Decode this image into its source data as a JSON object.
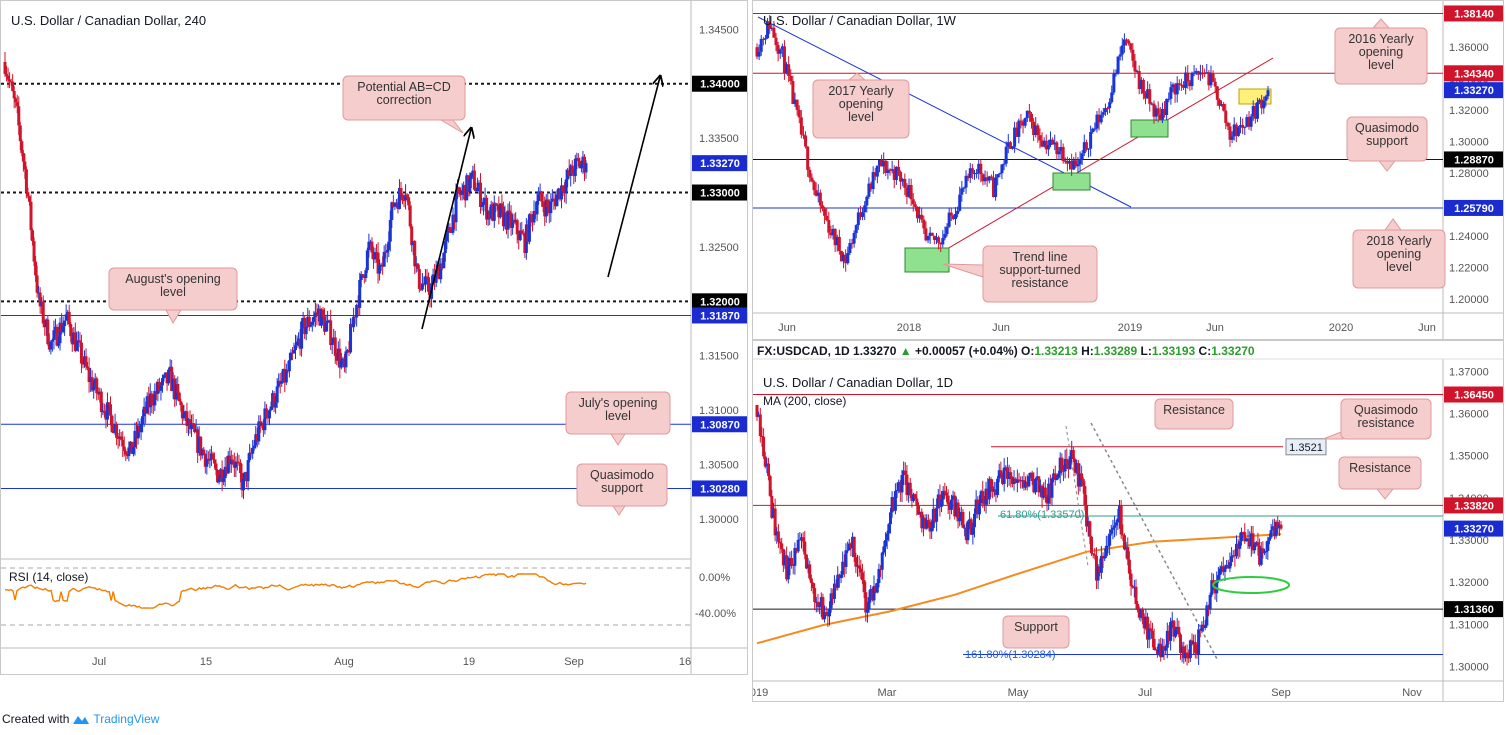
{
  "colors": {
    "bull": "#1a35d6",
    "bear": "#d0142c",
    "hline_red": "#d0142c",
    "hline_blue": "#1a35d6",
    "label_red": "#d0142c",
    "label_dark": "#131722",
    "callout_bg": "#f6cdcd",
    "callout_border": "#e09999",
    "rsi": "#f57c00",
    "ma": "#f58a1f",
    "fib": "#2a9d8f",
    "green_box": "#8fe08f",
    "yellow_box": "#fff07a"
  },
  "footer": {
    "created_with": "Created with",
    "brand": "TradingView"
  },
  "chart_data": [
    {
      "id": "h4",
      "type": "candlestick",
      "title": "U.S. Dollar / Canadian Dollar, 240",
      "ylim": [
        1.2965,
        1.3465
      ],
      "yticks": [
        "1.34500",
        "1.34000",
        "1.33500",
        "1.33000",
        "1.32500",
        "1.32000",
        "1.31500",
        "1.31000",
        "1.30500",
        "1.30000"
      ],
      "xticks": [
        "Jul",
        "15",
        "Aug",
        "19",
        "Sep",
        "16"
      ],
      "levels": [
        {
          "value": 1.34,
          "label": "1.34000",
          "style": "dotted",
          "color": "dark"
        },
        {
          "value": 1.3327,
          "label": "1.33270",
          "style": "none",
          "color": "blue"
        },
        {
          "value": 1.33,
          "label": "1.33000",
          "style": "dotted",
          "color": "dark"
        },
        {
          "value": 1.32,
          "label": "1.32000",
          "style": "dotted",
          "color": "dark"
        },
        {
          "value": 1.3187,
          "label": "1.31870",
          "style": "solid",
          "color": "blue"
        },
        {
          "value": 1.3087,
          "label": "1.30870",
          "style": "solid",
          "color": "blue"
        },
        {
          "value": 1.3028,
          "label": "1.30280",
          "style": "solid",
          "color": "blue"
        }
      ],
      "annotations": [
        "Potential AB=CD correction",
        "August's opening level",
        "July's opening level",
        "Quasimodo support"
      ],
      "rsi": {
        "label": "RSI (14, close)",
        "ticks": [
          "0.00%",
          "-40.00%"
        ]
      },
      "anchors": [
        [
          0,
          1.342
        ],
        [
          8,
          1.337
        ],
        [
          14,
          1.331
        ],
        [
          22,
          1.32
        ],
        [
          30,
          1.316
        ],
        [
          40,
          1.3185
        ],
        [
          55,
          1.313
        ],
        [
          70,
          1.309
        ],
        [
          82,
          1.306
        ],
        [
          95,
          1.311
        ],
        [
          108,
          1.313
        ],
        [
          118,
          1.309
        ],
        [
          130,
          1.306
        ],
        [
          140,
          1.304
        ],
        [
          148,
          1.306
        ],
        [
          156,
          1.303
        ],
        [
          163,
          1.307
        ],
        [
          172,
          1.31
        ],
        [
          185,
          1.3135
        ],
        [
          195,
          1.3175
        ],
        [
          205,
          1.319
        ],
        [
          213,
          1.317
        ],
        [
          222,
          1.3135
        ],
        [
          228,
          1.3185
        ],
        [
          238,
          1.325
        ],
        [
          246,
          1.3225
        ],
        [
          254,
          1.329
        ],
        [
          262,
          1.3305
        ],
        [
          270,
          1.322
        ],
        [
          278,
          1.321
        ],
        [
          286,
          1.3238
        ],
        [
          296,
          1.3295
        ],
        [
          306,
          1.3312
        ],
        [
          316,
          1.3282
        ],
        [
          324,
          1.328
        ],
        [
          332,
          1.327
        ],
        [
          340,
          1.3255
        ],
        [
          348,
          1.3295
        ],
        [
          356,
          1.3285
        ],
        [
          364,
          1.3305
        ],
        [
          374,
          1.3325
        ],
        [
          380,
          1.3327
        ]
      ]
    },
    {
      "id": "w1",
      "type": "candlestick",
      "title": "U.S. Dollar / Canadian Dollar, 1W",
      "ylim": [
        1.195,
        1.3855
      ],
      "yticks": [
        "1.36000",
        "1.34000",
        "1.32000",
        "1.30000",
        "1.28000",
        "1.26000",
        "1.24000",
        "1.22000",
        "1.20000"
      ],
      "xticks": [
        "Jun",
        "2018",
        "Jun",
        "2019",
        "Jun",
        "2020",
        "Jun"
      ],
      "levels": [
        {
          "value": 1.3814,
          "label": "1.38140",
          "style": "solid",
          "color": "red"
        },
        {
          "value": 1.3434,
          "label": "1.34340",
          "style": "solid",
          "color": "red"
        },
        {
          "value": 1.3327,
          "label": "1.33270",
          "style": "none",
          "color": "blue"
        },
        {
          "value": 1.2887,
          "label": "1.28870",
          "style": "solid",
          "color": "dark"
        },
        {
          "value": 1.2579,
          "label": "1.25790",
          "style": "solid",
          "color": "blue"
        }
      ],
      "annotations": [
        "2016 Yearly opening level",
        "2017 Yearly opening level",
        "Quasimodo support",
        "2018 Yearly opening level",
        "Trend line support-turned resistance"
      ],
      "anchors": [
        [
          0,
          1.36
        ],
        [
          6,
          1.375
        ],
        [
          12,
          1.355
        ],
        [
          20,
          1.31
        ],
        [
          28,
          1.265
        ],
        [
          36,
          1.24
        ],
        [
          42,
          1.225
        ],
        [
          50,
          1.26
        ],
        [
          58,
          1.285
        ],
        [
          66,
          1.28
        ],
        [
          74,
          1.265
        ],
        [
          80,
          1.235
        ],
        [
          88,
          1.24
        ],
        [
          96,
          1.265
        ],
        [
          104,
          1.285
        ],
        [
          112,
          1.27
        ],
        [
          120,
          1.3
        ],
        [
          128,
          1.315
        ],
        [
          136,
          1.3
        ],
        [
          144,
          1.295
        ],
        [
          152,
          1.283
        ],
        [
          158,
          1.305
        ],
        [
          166,
          1.325
        ],
        [
          174,
          1.365
        ],
        [
          182,
          1.335
        ],
        [
          190,
          1.315
        ],
        [
          198,
          1.335
        ],
        [
          206,
          1.34
        ],
        [
          212,
          1.345
        ],
        [
          218,
          1.33
        ],
        [
          224,
          1.305
        ],
        [
          230,
          1.31
        ],
        [
          236,
          1.32
        ],
        [
          242,
          1.3327
        ]
      ]
    },
    {
      "id": "d1",
      "type": "candlestick",
      "title": "U.S. Dollar / Canadian Dollar, 1D",
      "ohlc_header": {
        "symbol": "FX:USDCAD, 1D",
        "last": "1.33270",
        "change": "+0.00057 (+0.04%)",
        "o": "1.33213",
        "h": "1.33289",
        "l": "1.33193",
        "c": "1.33270"
      },
      "indicator": "MA (200, close)",
      "ylim": [
        1.2975,
        1.3715
      ],
      "yticks": [
        "1.37000",
        "1.36000",
        "1.35000",
        "1.34000",
        "1.33000",
        "1.32000",
        "1.31000",
        "1.30000"
      ],
      "xticks": [
        "019",
        "Mar",
        "May",
        "Jul",
        "Sep",
        "Nov"
      ],
      "levels": [
        {
          "value": 1.3645,
          "label": "1.36450",
          "style": "solid",
          "color": "red"
        },
        {
          "value": 1.3521,
          "label": "1.3521",
          "style": "solid",
          "color": "red"
        },
        {
          "value": 1.3382,
          "label": "1.33820",
          "style": "solid",
          "color": "red"
        },
        {
          "value": 1.3357,
          "label": "1.33570",
          "style": "solid",
          "color": "fib"
        },
        {
          "value": 1.3327,
          "label": "1.33270",
          "style": "none",
          "color": "blue"
        },
        {
          "value": 1.3136,
          "label": "1.31360",
          "style": "solid",
          "color": "dark"
        },
        {
          "value": 1.30284,
          "label": "1.30284",
          "style": "solid",
          "color": "blue"
        }
      ],
      "fib_labels": [
        "61.80%(1.33570)",
        "161.80%(1.30284)"
      ],
      "annotations": [
        "Resistance",
        "Quasimodo resistance",
        "Resistance",
        "Support"
      ],
      "anchors": [
        [
          0,
          1.362
        ],
        [
          4,
          1.352
        ],
        [
          10,
          1.335
        ],
        [
          18,
          1.322
        ],
        [
          26,
          1.33
        ],
        [
          34,
          1.318
        ],
        [
          42,
          1.312
        ],
        [
          50,
          1.32
        ],
        [
          58,
          1.33
        ],
        [
          66,
          1.315
        ],
        [
          72,
          1.318
        ],
        [
          80,
          1.335
        ],
        [
          88,
          1.345
        ],
        [
          96,
          1.338
        ],
        [
          104,
          1.333
        ],
        [
          112,
          1.34
        ],
        [
          120,
          1.338
        ],
        [
          128,
          1.332
        ],
        [
          136,
          1.34
        ],
        [
          144,
          1.343
        ],
        [
          152,
          1.345
        ],
        [
          160,
          1.342
        ],
        [
          168,
          1.344
        ],
        [
          176,
          1.34
        ],
        [
          184,
          1.347
        ],
        [
          192,
          1.35
        ],
        [
          198,
          1.34
        ],
        [
          206,
          1.323
        ],
        [
          214,
          1.33
        ],
        [
          220,
          1.336
        ],
        [
          228,
          1.318
        ],
        [
          236,
          1.31
        ],
        [
          244,
          1.303
        ],
        [
          252,
          1.31
        ],
        [
          260,
          1.302
        ],
        [
          268,
          1.306
        ],
        [
          276,
          1.318
        ],
        [
          284,
          1.322
        ],
        [
          292,
          1.33
        ],
        [
          300,
          1.329
        ],
        [
          306,
          1.326
        ],
        [
          314,
          1.333
        ],
        [
          318,
          1.3327
        ]
      ],
      "ma200": [
        [
          0,
          1.3055
        ],
        [
          40,
          1.3098
        ],
        [
          80,
          1.313
        ],
        [
          120,
          1.317
        ],
        [
          160,
          1.3222
        ],
        [
          200,
          1.3272
        ],
        [
          240,
          1.3296
        ],
        [
          280,
          1.3305
        ],
        [
          318,
          1.3314
        ]
      ]
    }
  ]
}
